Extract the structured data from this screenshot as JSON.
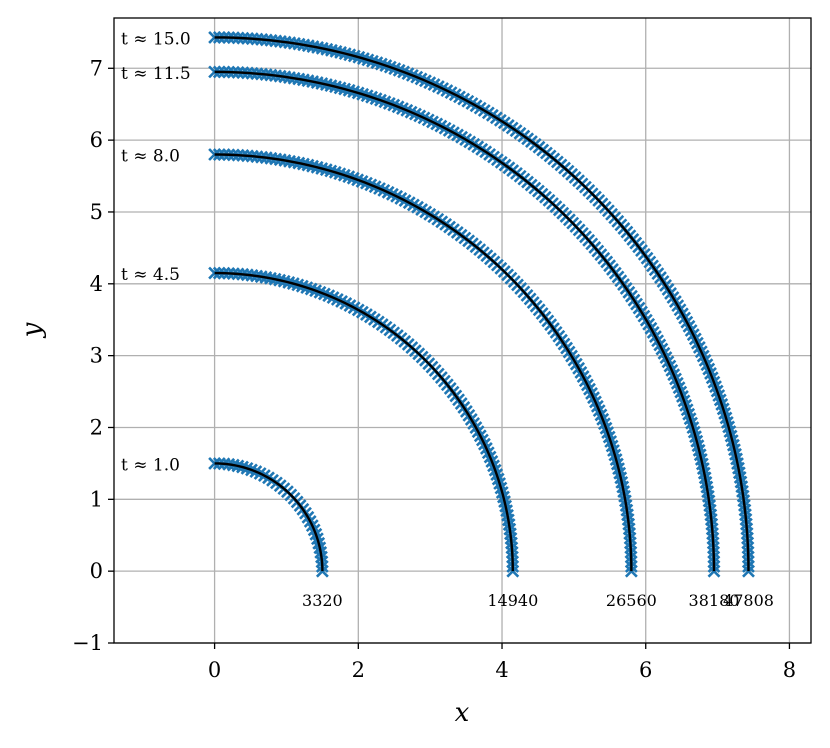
{
  "chart_data": {
    "type": "scatter",
    "xlabel": "x",
    "ylabel": "y",
    "xlim": [
      -1.4,
      8.3
    ],
    "ylim": [
      -1,
      7.7
    ],
    "xticks": [
      0,
      2,
      4,
      6,
      8
    ],
    "xtick_labels": [
      "0",
      "2",
      "4",
      "6",
      "8"
    ],
    "yticks": [
      -1,
      0,
      1,
      2,
      3,
      4,
      5,
      6,
      7
    ],
    "ytick_labels": [
      "−1",
      "0",
      "1",
      "2",
      "3",
      "4",
      "5",
      "6",
      "7"
    ],
    "grid": true,
    "marker_color": "#1f77b4",
    "line_color": "#000000",
    "series": [
      {
        "time_label": "t ≈ 1.0",
        "radius": 1.5,
        "count_label": "3320"
      },
      {
        "time_label": "t ≈ 4.5",
        "radius": 4.15,
        "count_label": "14940"
      },
      {
        "time_label": "t ≈ 8.0",
        "radius": 5.8,
        "count_label": "26560"
      },
      {
        "time_label": "t ≈ 11.5",
        "radius": 6.95,
        "count_label": "38180"
      },
      {
        "time_label": "t ≈ 15.0",
        "radius": 7.43,
        "count_label": "47808"
      }
    ]
  }
}
